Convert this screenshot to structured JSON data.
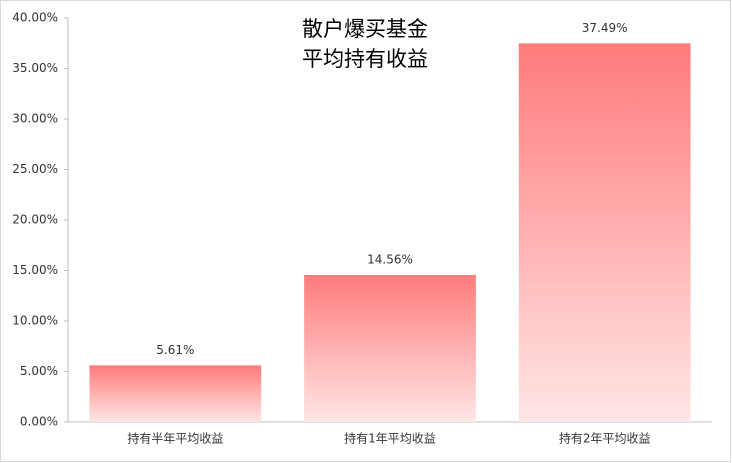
{
  "chart_data": {
    "type": "bar",
    "title": [
      "散户爆买基金",
      "平均持有收益"
    ],
    "categories": [
      "持有半年平均收益",
      "持有1年平均收益",
      "持有2年平均收益"
    ],
    "values": [
      5.61,
      14.56,
      37.49
    ],
    "value_labels": [
      "5.61%",
      "14.56%",
      "37.49%"
    ],
    "color": "#ff7b7b",
    "ylim": [
      0,
      40
    ],
    "yticks": [
      {
        "value": 0,
        "label": "0.00%"
      },
      {
        "value": 5,
        "label": "5.00%"
      },
      {
        "value": 10,
        "label": "10.00%"
      },
      {
        "value": 15,
        "label": "15.00%"
      },
      {
        "value": 20,
        "label": "20.00%"
      },
      {
        "value": 25,
        "label": "25.00%"
      },
      {
        "value": 30,
        "label": "30.00%"
      },
      {
        "value": 35,
        "label": "35.00%"
      },
      {
        "value": 40,
        "label": "40.00%"
      }
    ],
    "grid": false
  }
}
